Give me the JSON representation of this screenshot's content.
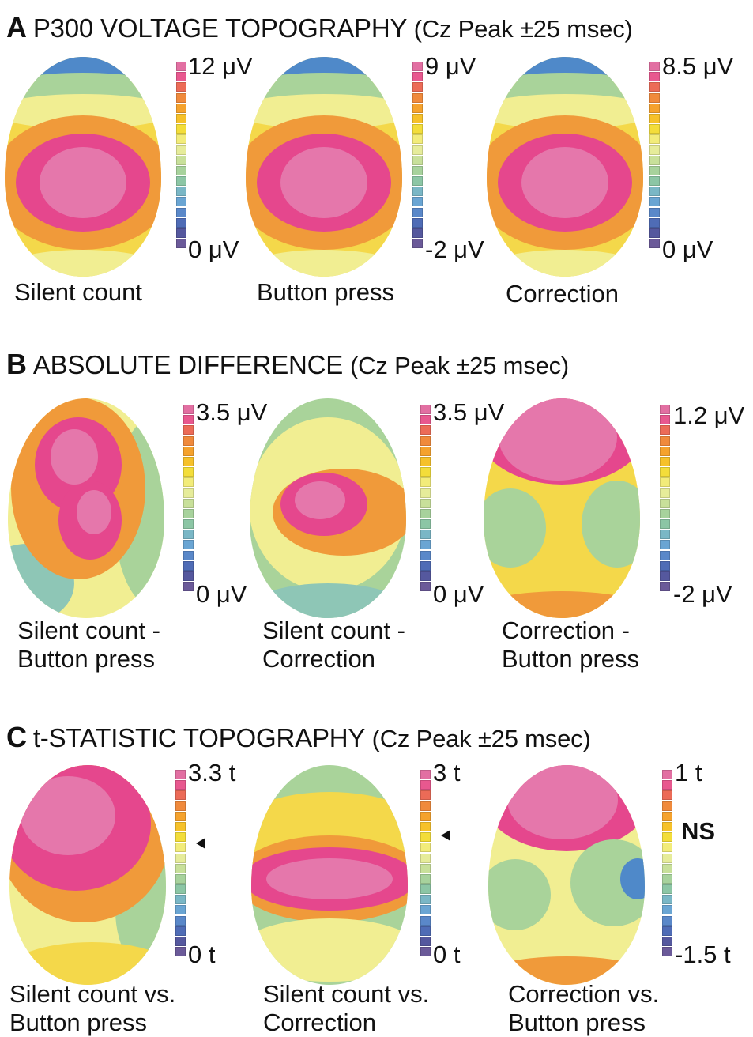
{
  "colors": {
    "scale": [
      "#e26fa2",
      "#e8588f",
      "#ec6b57",
      "#f08a3c",
      "#f5a22d",
      "#f6c12a",
      "#f3dd3a",
      "#f2ec7a",
      "#e6ec9a",
      "#c8e09a",
      "#a7d29c",
      "#8cc6a5",
      "#7ab7c6",
      "#6aa5d3",
      "#5a88c9",
      "#4f6cb6",
      "#55589e",
      "#6b5a99"
    ],
    "pink": "#e577ab",
    "magenta": "#e5478d",
    "orange": "#f09a3a",
    "yellow": "#f4d84a",
    "lightyellow": "#f1ee92",
    "green": "#a9d39a",
    "teal": "#8ec6b6",
    "blue": "#4f89c9"
  },
  "sections": [
    {
      "letter": "A",
      "title": "P300 VOLTAGE TOPOGRAPHY",
      "subtitle": "(Cz Peak ±25 msec)",
      "maps": [
        {
          "name": "silent-count",
          "top": "12 μV",
          "bottom": "0 μV",
          "caption": [
            "Silent count"
          ]
        },
        {
          "name": "button-press",
          "top": "9 μV",
          "bottom": "-2 μV",
          "caption": [
            "Button press"
          ]
        },
        {
          "name": "correction",
          "top": "8.5 μV",
          "bottom": "0 μV",
          "caption": [
            "Correction"
          ]
        }
      ]
    },
    {
      "letter": "B",
      "title": "ABSOLUTE DIFFERENCE",
      "subtitle": "(Cz Peak ±25 msec)",
      "maps": [
        {
          "name": "silent-minus-button",
          "top": "3.5 μV",
          "bottom": "0 μV",
          "caption": [
            "Silent count -",
            "Button press"
          ]
        },
        {
          "name": "silent-minus-correction",
          "top": "3.5 μV",
          "bottom": "0 μV",
          "caption": [
            "Silent count -",
            "Correction"
          ]
        },
        {
          "name": "correction-minus-button",
          "top": "1.2 μV",
          "bottom": "-2 μV",
          "caption": [
            "Correction -",
            "Button press"
          ]
        }
      ]
    },
    {
      "letter": "C",
      "title": "t-STATISTIC TOPOGRAPHY",
      "subtitle": "(Cz Peak ±25 msec)",
      "maps": [
        {
          "name": "silent-vs-button",
          "top": "3.3 t",
          "bottom": "0 t",
          "caption": [
            "Silent count vs.",
            "Button press"
          ],
          "marker": "arrow"
        },
        {
          "name": "silent-vs-correction",
          "top": "3 t",
          "bottom": "0 t",
          "caption": [
            "Silent count vs.",
            "Correction"
          ],
          "marker": "arrow"
        },
        {
          "name": "correction-vs-button",
          "top": "1 t",
          "bottom": "-1.5 t",
          "caption": [
            "Correction vs.",
            "Button press"
          ],
          "marker": "NS"
        }
      ]
    }
  ]
}
